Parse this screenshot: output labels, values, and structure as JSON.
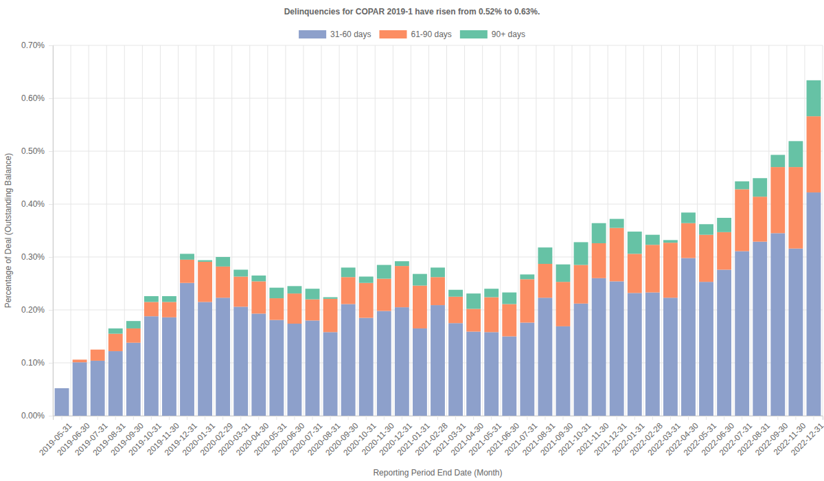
{
  "chart_data": {
    "type": "bar",
    "title": "Delinquencies for COPAR 2019-1 have risen from 0.52% to 0.63%.",
    "x_label": "Reporting Period End Date (Month)",
    "y_label": "Percentage of Deal (Outstanding Balance)",
    "categories": [
      "2019-05-31",
      "2019-06-30",
      "2019-07-31",
      "2019-08-31",
      "2019-09-30",
      "2019-10-31",
      "2019-11-30",
      "2019-12-31",
      "2020-01-31",
      "2020-02-29",
      "2020-03-31",
      "2020-04-30",
      "2020-05-31",
      "2020-06-30",
      "2020-07-31",
      "2020-08-31",
      "2020-09-30",
      "2020-10-31",
      "2020-11-30",
      "2020-12-31",
      "2021-01-31",
      "2021-02-28",
      "2021-03-31",
      "2021-04-30",
      "2021-05-31",
      "2021-06-30",
      "2021-07-31",
      "2021-08-31",
      "2021-09-30",
      "2021-10-31",
      "2021-11-30",
      "2021-12-31",
      "2022-01-31",
      "2022-02-28",
      "2022-03-31",
      "2022-04-30",
      "2022-05-31",
      "2022-06-30",
      "2022-07-31",
      "2022-08-31",
      "2022-09-30",
      "2022-11-30",
      "2022-12-31"
    ],
    "series": [
      {
        "name": "31-60 days",
        "color": "#8da0cb",
        "values": [
          0.052,
          0.101,
          0.104,
          0.122,
          0.138,
          0.188,
          0.186,
          0.251,
          0.215,
          0.223,
          0.206,
          0.193,
          0.181,
          0.174,
          0.18,
          0.158,
          0.211,
          0.185,
          0.198,
          0.205,
          0.165,
          0.209,
          0.175,
          0.159,
          0.158,
          0.15,
          0.176,
          0.223,
          0.169,
          0.212,
          0.26,
          0.254,
          0.232,
          0.233,
          0.223,
          0.298,
          0.253,
          0.276,
          0.311,
          0.329,
          0.345,
          0.316,
          0.422
        ]
      },
      {
        "name": "61-90 days",
        "color": "#fc8d62",
        "values": [
          0,
          0.005,
          0.021,
          0.033,
          0.027,
          0.027,
          0.029,
          0.044,
          0.076,
          0.059,
          0.057,
          0.061,
          0.041,
          0.057,
          0.04,
          0.063,
          0.051,
          0.066,
          0.061,
          0.078,
          0.081,
          0.053,
          0.05,
          0.043,
          0.066,
          0.061,
          0.082,
          0.064,
          0.084,
          0.073,
          0.066,
          0.101,
          0.074,
          0.09,
          0.104,
          0.066,
          0.089,
          0.071,
          0.117,
          0.085,
          0.125,
          0.154,
          0.144
        ]
      },
      {
        "name": "90+ days",
        "color": "#66c2a5",
        "values": [
          0,
          0,
          0,
          0.01,
          0.014,
          0.011,
          0.011,
          0.011,
          0.003,
          0.018,
          0.013,
          0.011,
          0.02,
          0.014,
          0.02,
          0.003,
          0.018,
          0.012,
          0.026,
          0.009,
          0.022,
          0.018,
          0.013,
          0.029,
          0.016,
          0.022,
          0.009,
          0.031,
          0.033,
          0.043,
          0.038,
          0.017,
          0.042,
          0.019,
          0.005,
          0.02,
          0.02,
          0.027,
          0.015,
          0.035,
          0.023,
          0.049,
          0.068
        ]
      }
    ],
    "ylim": [
      0,
      0.7
    ],
    "yticks": [
      {
        "value": 0,
        "label": "0.00%"
      },
      {
        "value": 0.1,
        "label": "0.10%"
      },
      {
        "value": 0.2,
        "label": "0.20%"
      },
      {
        "value": 0.3,
        "label": "0.30%"
      },
      {
        "value": 0.4,
        "label": "0.40%"
      },
      {
        "value": 0.5,
        "label": "0.50%"
      },
      {
        "value": 0.6,
        "label": "0.60%"
      },
      {
        "value": 0.7,
        "label": "0.70%"
      }
    ],
    "stacked": true,
    "grid": true,
    "legend": "top"
  }
}
